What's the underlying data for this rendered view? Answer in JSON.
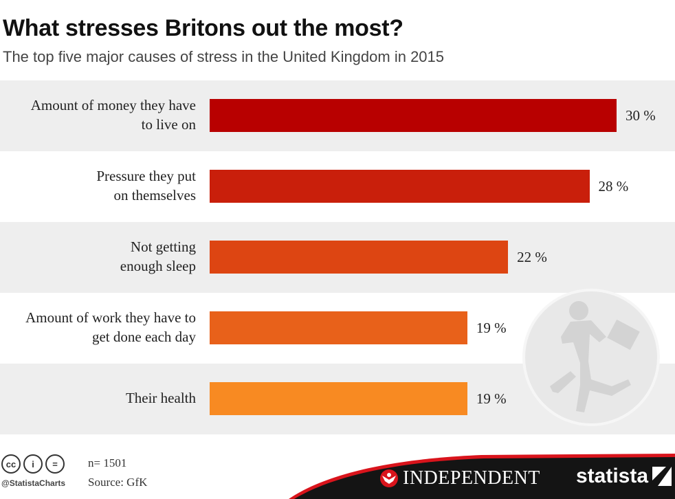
{
  "title": "What stresses Britons out the most?",
  "subtitle": "The top five major causes of stress in the United Kingdom in 2015",
  "chart_data": {
    "type": "bar",
    "orientation": "horizontal",
    "categories": [
      "Amount of money they have\nto live on",
      "Pressure they put\non themselves",
      "Not getting\nenough sleep",
      "Amount of work they have to\nget done each day",
      "Their health"
    ],
    "values": [
      30,
      28,
      22,
      19,
      19
    ],
    "value_labels": [
      "30 %",
      "28 %",
      "22 %",
      "19 %",
      "19 %"
    ],
    "bar_colors": [
      "#b80000",
      "#c91f0b",
      "#dd4512",
      "#e8611a",
      "#f88a22"
    ],
    "xlim": [
      0,
      30
    ],
    "grid": false,
    "legend": "none"
  },
  "footer": {
    "cc_icons": [
      "cc-icon",
      "attribution-icon",
      "no-derivatives-icon"
    ],
    "cc_glyphs": [
      "cc",
      "i",
      "="
    ],
    "handle": "@StatistaCharts",
    "sample": "n= 1501",
    "source": "Source: GfK",
    "brand_left": "INDEPENDENT",
    "brand_right": "statista",
    "accent_color": "#d9141c"
  }
}
